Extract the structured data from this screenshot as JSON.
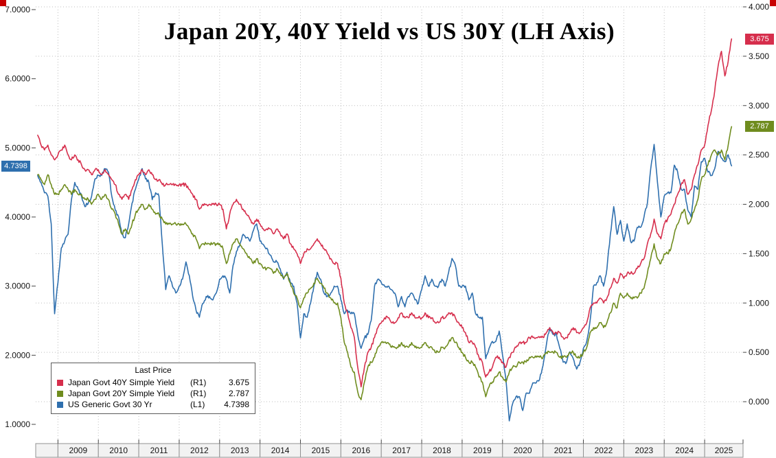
{
  "chart_data": {
    "type": "line",
    "title": "Japan 20Y, 40Y Yield vs US 30Y (LH Axis)",
    "grid": "dotted",
    "legend_position": "bottom-left",
    "x_domain": [
      2008.45,
      2025.95
    ],
    "x_start": 2008.5,
    "x_step_years": 0.0833,
    "x_tick_years": [
      "2009",
      "2010",
      "2011",
      "2012",
      "2013",
      "2014",
      "2015",
      "2016",
      "2017",
      "2018",
      "2019",
      "2020",
      "2021",
      "2022",
      "2023",
      "2024",
      "2025"
    ],
    "axes": {
      "left": {
        "min": 1,
        "max": 7,
        "tick_labels": [
          "7.0000",
          "6.0000",
          "5.0000",
          "4.0000",
          "3.0000",
          "2.0000",
          "1.0000"
        ]
      },
      "right": {
        "min": 0,
        "max": 4,
        "top_tick_color": "#a80000",
        "tick_labels": [
          "4.000",
          "3.500",
          "3.000",
          "2.500",
          "2.000",
          "1.500",
          "1.000",
          "0.500",
          "0.000"
        ]
      }
    },
    "series": [
      {
        "name": "Japan Govt 40Y Simple Yield",
        "axis_tag": "(R1)",
        "axis": "right",
        "color": "#d62e4c",
        "last_label": "3.675",
        "values": [
          2.7,
          2.6,
          2.55,
          2.6,
          2.5,
          2.45,
          2.5,
          2.55,
          2.6,
          2.5,
          2.45,
          2.5,
          2.45,
          2.4,
          2.35,
          2.35,
          2.3,
          2.35,
          2.35,
          2.3,
          2.35,
          2.3,
          2.25,
          2.2,
          2.1,
          2.05,
          2.1,
          2.05,
          2.15,
          2.25,
          2.3,
          2.35,
          2.3,
          2.35,
          2.3,
          2.25,
          2.25,
          2.2,
          2.2,
          2.2,
          2.2,
          2.2,
          2.2,
          2.2,
          2.2,
          2.15,
          2.1,
          2.05,
          1.95,
          2.0,
          2.0,
          2.0,
          2.0,
          2.0,
          2.0,
          1.95,
          1.75,
          1.9,
          2.0,
          2.05,
          2.0,
          1.95,
          1.9,
          1.85,
          1.8,
          1.85,
          1.8,
          1.75,
          1.75,
          1.75,
          1.7,
          1.75,
          1.7,
          1.65,
          1.7,
          1.6,
          1.55,
          1.5,
          1.4,
          1.5,
          1.55,
          1.55,
          1.6,
          1.65,
          1.6,
          1.55,
          1.5,
          1.45,
          1.4,
          1.4,
          1.25,
          1.0,
          0.9,
          0.75,
          0.65,
          0.35,
          0.15,
          0.35,
          0.5,
          0.55,
          0.65,
          0.75,
          0.8,
          0.85,
          0.85,
          0.8,
          0.8,
          0.85,
          0.9,
          0.85,
          0.85,
          0.9,
          0.85,
          0.85,
          0.85,
          0.9,
          0.85,
          0.85,
          0.8,
          0.8,
          0.85,
          0.85,
          0.9,
          0.9,
          0.85,
          0.8,
          0.75,
          0.7,
          0.6,
          0.6,
          0.55,
          0.45,
          0.4,
          0.25,
          0.3,
          0.35,
          0.45,
          0.45,
          0.4,
          0.35,
          0.45,
          0.5,
          0.55,
          0.6,
          0.6,
          0.6,
          0.65,
          0.65,
          0.65,
          0.65,
          0.65,
          0.7,
          0.75,
          0.7,
          0.7,
          0.7,
          0.65,
          0.65,
          0.7,
          0.75,
          0.7,
          0.7,
          0.75,
          0.8,
          0.95,
          1.0,
          1.0,
          1.05,
          1.0,
          1.05,
          1.15,
          1.25,
          1.2,
          1.3,
          1.25,
          1.3,
          1.3,
          1.3,
          1.35,
          1.4,
          1.45,
          1.6,
          1.7,
          1.85,
          1.7,
          1.65,
          1.8,
          1.85,
          1.9,
          2.0,
          2.1,
          2.2,
          2.25,
          2.1,
          2.15,
          2.3,
          2.4,
          2.55,
          2.6,
          2.8,
          2.95,
          3.15,
          3.4,
          3.55,
          3.3,
          3.45,
          3.675
        ]
      },
      {
        "name": "Japan Govt 20Y Simple Yield",
        "axis_tag": "(R1)",
        "axis": "right",
        "color": "#6f8c1e",
        "last_label": "2.787",
        "values": [
          2.3,
          2.25,
          2.2,
          2.3,
          2.2,
          2.1,
          2.1,
          2.15,
          2.2,
          2.15,
          2.1,
          2.15,
          2.1,
          2.1,
          2.05,
          2.05,
          2.0,
          2.05,
          2.1,
          2.05,
          2.1,
          2.05,
          1.95,
          1.9,
          1.8,
          1.7,
          1.75,
          1.7,
          1.8,
          1.9,
          1.95,
          2.0,
          1.95,
          2.0,
          1.95,
          1.9,
          1.9,
          1.85,
          1.8,
          1.8,
          1.8,
          1.8,
          1.8,
          1.8,
          1.8,
          1.75,
          1.7,
          1.65,
          1.55,
          1.6,
          1.6,
          1.6,
          1.6,
          1.6,
          1.6,
          1.55,
          1.4,
          1.5,
          1.6,
          1.65,
          1.6,
          1.55,
          1.5,
          1.45,
          1.4,
          1.45,
          1.4,
          1.35,
          1.35,
          1.35,
          1.3,
          1.35,
          1.3,
          1.25,
          1.3,
          1.2,
          1.1,
          1.05,
          0.95,
          1.05,
          1.1,
          1.15,
          1.2,
          1.25,
          1.2,
          1.15,
          1.1,
          1.05,
          1.0,
          1.0,
          0.85,
          0.6,
          0.5,
          0.35,
          0.3,
          0.1,
          0.02,
          0.2,
          0.35,
          0.4,
          0.45,
          0.55,
          0.6,
          0.6,
          0.6,
          0.55,
          0.55,
          0.55,
          0.6,
          0.55,
          0.55,
          0.6,
          0.55,
          0.55,
          0.55,
          0.6,
          0.55,
          0.55,
          0.5,
          0.5,
          0.55,
          0.55,
          0.6,
          0.65,
          0.6,
          0.55,
          0.5,
          0.45,
          0.4,
          0.4,
          0.35,
          0.25,
          0.2,
          0.05,
          0.15,
          0.2,
          0.25,
          0.3,
          0.25,
          0.2,
          0.3,
          0.35,
          0.35,
          0.4,
          0.4,
          0.4,
          0.45,
          0.45,
          0.45,
          0.45,
          0.45,
          0.5,
          0.5,
          0.5,
          0.5,
          0.45,
          0.45,
          0.45,
          0.5,
          0.5,
          0.45,
          0.45,
          0.5,
          0.55,
          0.7,
          0.75,
          0.75,
          0.8,
          0.75,
          0.8,
          0.9,
          1.0,
          0.95,
          1.1,
          1.05,
          1.1,
          1.05,
          1.05,
          1.05,
          1.1,
          1.15,
          1.3,
          1.45,
          1.6,
          1.45,
          1.4,
          1.5,
          1.5,
          1.55,
          1.7,
          1.8,
          1.9,
          1.95,
          1.8,
          1.85,
          1.95,
          2.05,
          2.25,
          2.3,
          2.4,
          2.5,
          2.55,
          2.5,
          2.55,
          2.45,
          2.6,
          2.787
        ]
      },
      {
        "name": "US Generic Govt 30 Yr",
        "axis_tag": "(L1)",
        "axis": "left",
        "color": "#2e6fae",
        "last_label": "4.7398",
        "values": [
          4.6,
          4.5,
          4.35,
          4.3,
          3.9,
          2.6,
          3.05,
          3.55,
          3.65,
          3.75,
          4.25,
          4.5,
          4.4,
          4.3,
          4.15,
          4.2,
          4.3,
          4.55,
          4.6,
          4.6,
          4.7,
          4.65,
          4.3,
          4.1,
          4.0,
          3.75,
          3.7,
          3.9,
          4.2,
          4.4,
          4.55,
          4.7,
          4.55,
          4.5,
          4.25,
          4.35,
          4.3,
          3.6,
          2.95,
          3.15,
          3.0,
          2.9,
          3.0,
          3.1,
          3.35,
          3.15,
          2.85,
          2.65,
          2.55,
          2.75,
          2.85,
          2.85,
          2.8,
          2.9,
          3.1,
          3.15,
          3.1,
          2.9,
          3.3,
          3.5,
          3.6,
          3.75,
          3.7,
          3.65,
          3.8,
          3.9,
          3.65,
          3.6,
          3.55,
          3.45,
          3.35,
          3.35,
          3.25,
          3.1,
          3.2,
          3.05,
          3.0,
          2.75,
          2.25,
          2.6,
          2.55,
          2.75,
          3.0,
          3.2,
          3.1,
          2.9,
          2.85,
          2.9,
          3.0,
          3.0,
          2.8,
          2.6,
          2.65,
          2.6,
          2.6,
          2.3,
          2.1,
          2.25,
          2.3,
          2.5,
          3.0,
          3.1,
          3.05,
          3.0,
          3.0,
          2.95,
          2.9,
          2.7,
          2.85,
          2.7,
          2.85,
          2.9,
          2.8,
          2.75,
          2.95,
          3.15,
          3.0,
          3.1,
          3.0,
          3.0,
          3.1,
          3.0,
          3.2,
          3.4,
          3.3,
          3.0,
          3.0,
          3.0,
          2.8,
          2.9,
          2.6,
          2.55,
          2.55,
          1.95,
          2.1,
          2.2,
          2.2,
          2.35,
          2.0,
          1.65,
          1.05,
          1.3,
          1.4,
          1.4,
          1.2,
          1.45,
          1.45,
          1.6,
          1.6,
          1.65,
          1.85,
          2.15,
          2.4,
          2.3,
          2.3,
          2.1,
          1.9,
          1.9,
          2.05,
          1.95,
          1.8,
          1.9,
          2.1,
          2.2,
          2.5,
          3.0,
          3.05,
          3.15,
          3.0,
          3.25,
          3.75,
          4.15,
          3.75,
          3.95,
          3.65,
          3.9,
          3.65,
          3.65,
          3.85,
          3.85,
          4.0,
          4.2,
          4.7,
          5.05,
          4.5,
          4.0,
          4.3,
          4.35,
          4.35,
          4.75,
          4.65,
          4.4,
          4.4,
          4.1,
          4.0,
          4.45,
          4.4,
          4.8,
          4.85,
          4.65,
          4.6,
          4.7,
          4.95,
          4.85,
          4.8,
          4.9,
          4.7398
        ]
      }
    ]
  },
  "legend": {
    "title": "Last Price"
  }
}
